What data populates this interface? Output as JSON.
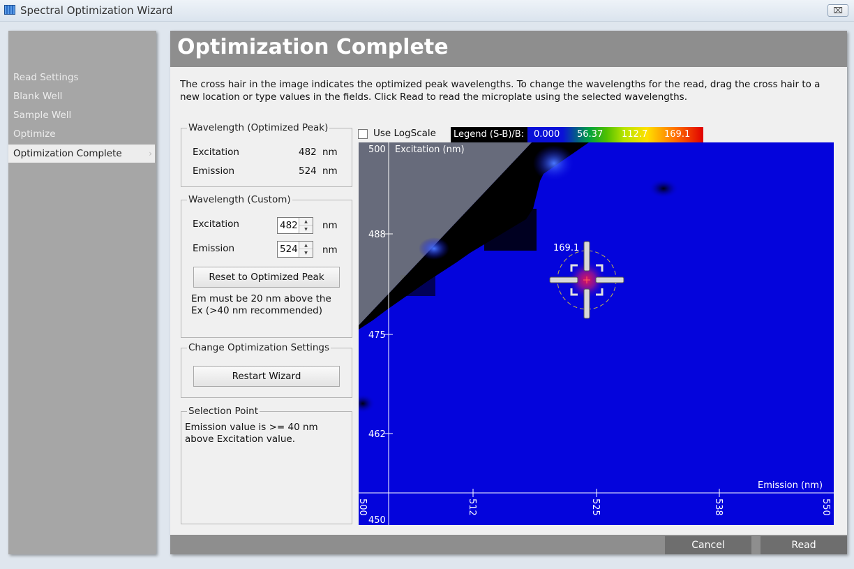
{
  "window": {
    "title": "Spectral Optimization Wizard",
    "close_label": "⌧"
  },
  "sidebar": {
    "items": [
      {
        "label": "Read Settings"
      },
      {
        "label": "Blank Well"
      },
      {
        "label": "Sample Well"
      },
      {
        "label": "Optimize"
      },
      {
        "label": "Optimization Complete",
        "active": true
      }
    ]
  },
  "header": {
    "title": "Optimization Complete"
  },
  "description": "The cross hair in the image indicates the optimized peak wavelengths. To change the wavelengths for the read, drag the cross hair to a new location or type values in the fields. Click Read to read the microplate using the selected wavelengths.",
  "optimized_peak": {
    "legend": "Wavelength (Optimized Peak)",
    "excitation_label": "Excitation",
    "excitation_value": "482",
    "excitation_unit": "nm",
    "emission_label": "Emission",
    "emission_value": "524",
    "emission_unit": "nm"
  },
  "custom": {
    "legend": "Wavelength (Custom)",
    "excitation_label": "Excitation",
    "excitation_value": "482",
    "excitation_unit": "nm",
    "emission_label": "Emission",
    "emission_value": "524",
    "emission_unit": "nm",
    "reset_label": "Reset to Optimized Peak",
    "note": "Em must be 20 nm above the Ex (>40 nm recommended)"
  },
  "change_settings": {
    "legend": "Change Optimization Settings",
    "restart_label": "Restart Wizard"
  },
  "selection_point": {
    "legend": "Selection Point",
    "text": "Emission value is >= 40 nm above Excitation value."
  },
  "plot": {
    "log_scale_label": "Use LogScale",
    "log_scale_checked": false,
    "legend_title": "Legend (S-B)/B:",
    "legend_ticks": [
      "0.000",
      "56.37",
      "112.7",
      "169.1"
    ],
    "y_axis_label": "Excitation (nm)",
    "x_axis_label": "Emission (nm)",
    "y_ticks": [
      "500",
      "488",
      "475",
      "462",
      "450"
    ],
    "x_ticks": [
      "500",
      "512",
      "525",
      "538",
      "550"
    ],
    "peak_value_label": "169.1",
    "crosshair": {
      "emission": 524,
      "excitation": 482
    }
  },
  "footer": {
    "cancel_label": "Cancel",
    "read_label": "Read"
  },
  "colors": {
    "heatmap_base": "#0404dc",
    "header": "#8e8e8e",
    "sidebar": "#a6a6a6"
  }
}
